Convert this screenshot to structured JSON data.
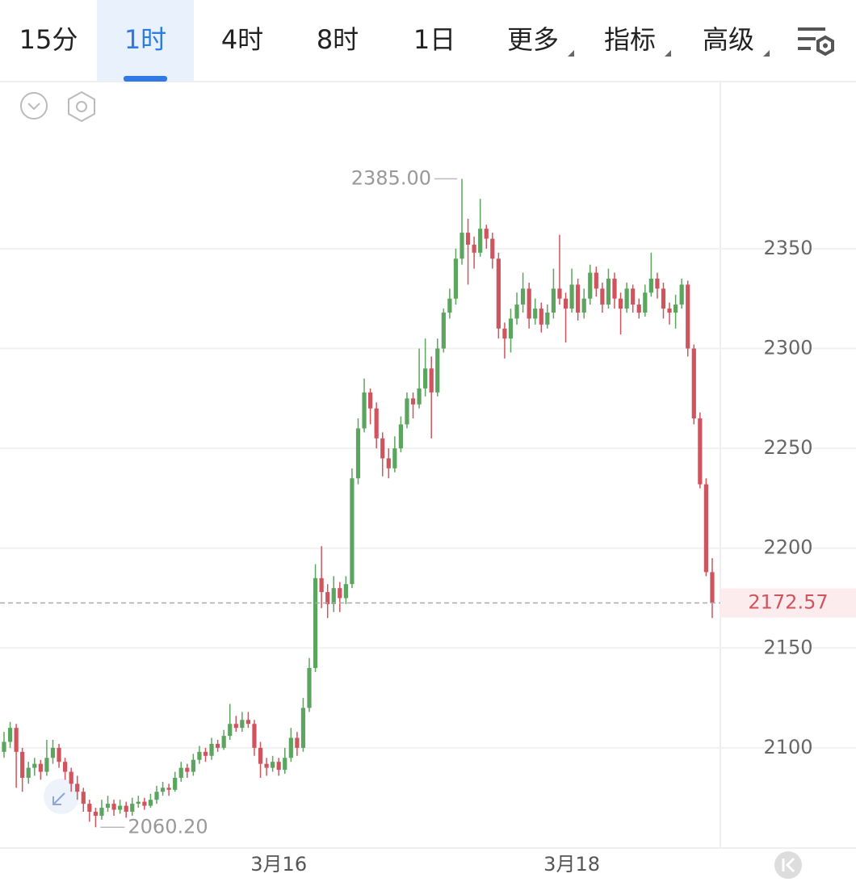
{
  "toolbar": {
    "tabs": [
      "15分",
      "1时",
      "4时",
      "8时",
      "1日",
      "更多",
      "指标",
      "高级"
    ],
    "active": 1
  },
  "chart_data": {
    "type": "candlestick",
    "up_color": "#5ba55f",
    "down_color": "#d0545e",
    "ylim": [
      2049.8,
      2434.1
    ],
    "yticks": [
      2100,
      2150,
      2200,
      2250,
      2300,
      2350
    ],
    "grid": true,
    "categories": [
      null,
      null,
      null,
      null,
      null,
      null,
      null,
      null,
      null,
      null,
      null,
      null,
      null,
      null,
      null,
      null,
      null,
      null,
      null,
      null,
      null,
      null,
      null,
      null,
      null,
      null,
      null,
      null,
      null,
      null,
      null,
      null,
      null,
      null,
      null,
      null,
      null,
      null,
      null,
      null,
      null,
      null,
      null,
      null,
      null,
      "3月16",
      null,
      null,
      null,
      null,
      null,
      null,
      null,
      null,
      null,
      null,
      null,
      null,
      null,
      null,
      null,
      null,
      null,
      null,
      null,
      null,
      null,
      null,
      null,
      null,
      null,
      null,
      null,
      null,
      null,
      null,
      null,
      null,
      null,
      null,
      null,
      null,
      null,
      null,
      null,
      null,
      null,
      null,
      null,
      null,
      null,
      null,
      null,
      "3月18",
      null,
      null,
      null,
      null,
      null,
      null,
      null,
      null,
      null,
      null,
      null,
      null,
      null,
      null,
      null,
      null,
      null,
      null,
      null,
      null,
      null,
      null,
      null
    ],
    "candles": [
      [
        2098,
        2108,
        2095,
        2103
      ],
      [
        2103,
        2113,
        2100,
        2110
      ],
      [
        2110,
        2112,
        2080,
        2098
      ],
      [
        2098,
        2100,
        2078,
        2085
      ],
      [
        2085,
        2093,
        2082,
        2090
      ],
      [
        2090,
        2095,
        2086,
        2092
      ],
      [
        2092,
        2094,
        2084,
        2088
      ],
      [
        2088,
        2104,
        2086,
        2095
      ],
      [
        2095,
        2104,
        2092,
        2100
      ],
      [
        2100,
        2102,
        2090,
        2093
      ],
      [
        2093,
        2095,
        2084,
        2088
      ],
      [
        2088,
        2090,
        2078,
        2082
      ],
      [
        2082,
        2086,
        2074,
        2078
      ],
      [
        2078,
        2080,
        2068,
        2072
      ],
      [
        2072,
        2074,
        2063,
        2068
      ],
      [
        2068,
        2070,
        2060.2,
        2066
      ],
      [
        2066,
        2074,
        2064,
        2070
      ],
      [
        2070,
        2076,
        2068,
        2072
      ],
      [
        2072,
        2074,
        2066,
        2069
      ],
      [
        2069,
        2074,
        2067,
        2071
      ],
      [
        2071,
        2073,
        2065,
        2068
      ],
      [
        2068,
        2075,
        2066,
        2072
      ],
      [
        2072,
        2076,
        2070,
        2073
      ],
      [
        2073,
        2075,
        2069,
        2071
      ],
      [
        2071,
        2077,
        2070,
        2074
      ],
      [
        2074,
        2081,
        2072,
        2078
      ],
      [
        2078,
        2083,
        2076,
        2080
      ],
      [
        2080,
        2082,
        2076,
        2079
      ],
      [
        2079,
        2088,
        2078,
        2085
      ],
      [
        2085,
        2093,
        2083,
        2090
      ],
      [
        2090,
        2092,
        2085,
        2088
      ],
      [
        2088,
        2097,
        2086,
        2094
      ],
      [
        2094,
        2101,
        2092,
        2098
      ],
      [
        2098,
        2100,
        2093,
        2096
      ],
      [
        2096,
        2105,
        2094,
        2102
      ],
      [
        2102,
        2104,
        2098,
        2100
      ],
      [
        2100,
        2109,
        2099,
        2106
      ],
      [
        2106,
        2122,
        2104,
        2112
      ],
      [
        2112,
        2116,
        2108,
        2110
      ],
      [
        2110,
        2118,
        2108,
        2114
      ],
      [
        2114,
        2118,
        2110,
        2112
      ],
      [
        2112,
        2114,
        2096,
        2100
      ],
      [
        2100,
        2103,
        2085,
        2092
      ],
      [
        2092,
        2095,
        2086,
        2090
      ],
      [
        2090,
        2096,
        2088,
        2093
      ],
      [
        2093,
        2095,
        2086,
        2089
      ],
      [
        2089,
        2100,
        2087,
        2095
      ],
      [
        2095,
        2110,
        2093,
        2105
      ],
      [
        2105,
        2108,
        2096,
        2100
      ],
      [
        2100,
        2125,
        2098,
        2120
      ],
      [
        2120,
        2145,
        2118,
        2140
      ],
      [
        2140,
        2192,
        2138,
        2185
      ],
      [
        2185,
        2201,
        2170,
        2178
      ],
      [
        2178,
        2182,
        2165,
        2172
      ],
      [
        2172,
        2186,
        2168,
        2180
      ],
      [
        2180,
        2183,
        2168,
        2175
      ],
      [
        2175,
        2186,
        2172,
        2182
      ],
      [
        2182,
        2240,
        2180,
        2235
      ],
      [
        2235,
        2265,
        2232,
        2260
      ],
      [
        2260,
        2285,
        2258,
        2278
      ],
      [
        2278,
        2280,
        2262,
        2270
      ],
      [
        2270,
        2273,
        2250,
        2255
      ],
      [
        2255,
        2258,
        2236,
        2245
      ],
      [
        2245,
        2250,
        2235,
        2240
      ],
      [
        2240,
        2256,
        2238,
        2250
      ],
      [
        2250,
        2266,
        2248,
        2262
      ],
      [
        2262,
        2278,
        2260,
        2275
      ],
      [
        2275,
        2278,
        2265,
        2272
      ],
      [
        2272,
        2300,
        2270,
        2280
      ],
      [
        2280,
        2305,
        2276,
        2290
      ],
      [
        2290,
        2296,
        2255,
        2278
      ],
      [
        2278,
        2305,
        2276,
        2300
      ],
      [
        2300,
        2320,
        2298,
        2318
      ],
      [
        2318,
        2330,
        2315,
        2325
      ],
      [
        2325,
        2350,
        2322,
        2345
      ],
      [
        2345,
        2385,
        2342,
        2358
      ],
      [
        2358,
        2365,
        2332,
        2352
      ],
      [
        2352,
        2356,
        2340,
        2348
      ],
      [
        2348,
        2375,
        2346,
        2360
      ],
      [
        2360,
        2362,
        2350,
        2355
      ],
      [
        2355,
        2358,
        2340,
        2345
      ],
      [
        2345,
        2348,
        2305,
        2310
      ],
      [
        2310,
        2313,
        2295,
        2305
      ],
      [
        2305,
        2320,
        2298,
        2315
      ],
      [
        2315,
        2328,
        2312,
        2322
      ],
      [
        2322,
        2338,
        2318,
        2330
      ],
      [
        2330,
        2333,
        2310,
        2315
      ],
      [
        2315,
        2325,
        2312,
        2320
      ],
      [
        2320,
        2323,
        2308,
        2312
      ],
      [
        2312,
        2322,
        2310,
        2318
      ],
      [
        2318,
        2340,
        2315,
        2330
      ],
      [
        2330,
        2357,
        2322,
        2325
      ],
      [
        2325,
        2328,
        2303,
        2320
      ],
      [
        2320,
        2340,
        2318,
        2332
      ],
      [
        2332,
        2335,
        2314,
        2318
      ],
      [
        2318,
        2330,
        2315,
        2325
      ],
      [
        2325,
        2342,
        2322,
        2338
      ],
      [
        2338,
        2341,
        2326,
        2330
      ],
      [
        2330,
        2333,
        2318,
        2322
      ],
      [
        2322,
        2340,
        2320,
        2335
      ],
      [
        2335,
        2338,
        2320,
        2325
      ],
      [
        2325,
        2328,
        2307,
        2320
      ],
      [
        2320,
        2333,
        2318,
        2330
      ],
      [
        2330,
        2332,
        2318,
        2322
      ],
      [
        2322,
        2325,
        2315,
        2318
      ],
      [
        2318,
        2332,
        2316,
        2328
      ],
      [
        2328,
        2348,
        2326,
        2335
      ],
      [
        2335,
        2338,
        2325,
        2330
      ],
      [
        2330,
        2333,
        2315,
        2320
      ],
      [
        2320,
        2323,
        2312,
        2318
      ],
      [
        2318,
        2327,
        2310,
        2322
      ],
      [
        2322,
        2335,
        2320,
        2332
      ],
      [
        2332,
        2334,
        2296,
        2300
      ],
      [
        2300,
        2302,
        2262,
        2265
      ],
      [
        2265,
        2268,
        2230,
        2232
      ],
      [
        2232,
        2235,
        2186,
        2188
      ],
      [
        2188,
        2195,
        2165,
        2172.57
      ]
    ],
    "annotations": [
      {
        "value": 2385,
        "label": "2385.00"
      },
      {
        "value": 2060.2,
        "label": "2060.20"
      }
    ],
    "last_price": 2172.57
  }
}
